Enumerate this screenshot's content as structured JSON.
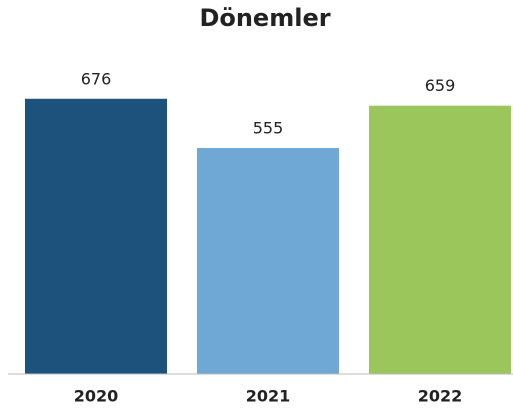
{
  "chart_data": {
    "type": "bar",
    "title": "Dönemler",
    "categories": [
      "2020",
      "2021",
      "2022"
    ],
    "values": [
      676,
      555,
      659
    ],
    "colors": [
      "#1d527d",
      "#6fa7d5",
      "#9ac65b"
    ],
    "ylim": [
      0,
      700
    ],
    "grid": false
  }
}
